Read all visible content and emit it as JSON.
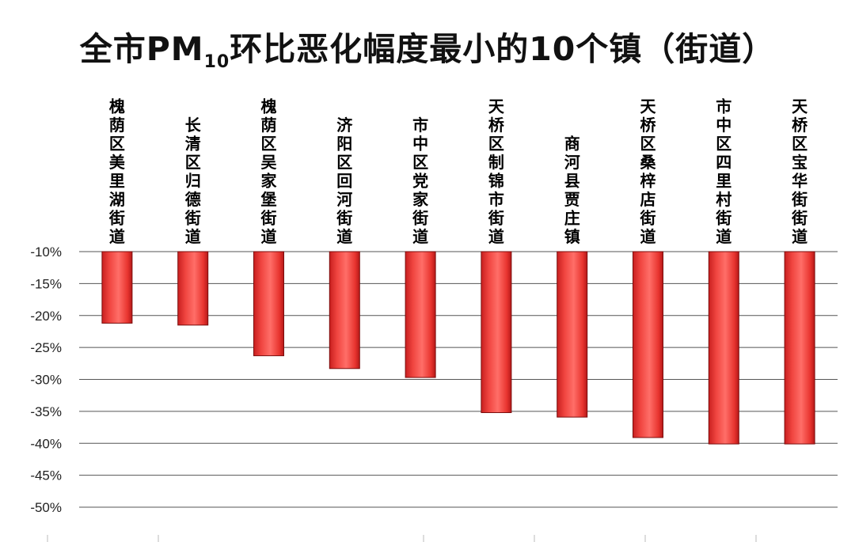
{
  "title": {
    "prefix": "全市PM",
    "subscript": "10",
    "suffix": "环比恶化幅度最小的10个镇（街道）"
  },
  "chart_data": {
    "type": "bar",
    "title": "全市PM10环比恶化幅度最小的10个镇（街道）",
    "xlabel": "",
    "ylabel": "",
    "categories": [
      "槐荫区美里湖街道",
      "长清区归德街道",
      "槐荫区吴家堡街道",
      "济阳区回河街道",
      "市中区党家街道",
      "天桥区制锦市街道",
      "商河县贾庄镇",
      "天桥区桑梓店街道",
      "市中区四里村街道",
      "天桥区宝华街街道"
    ],
    "series": [
      {
        "values": [
          -21.2,
          -21.5,
          -26.3,
          -28.3,
          -29.7,
          -35.2,
          -35.9,
          -39.1,
          -40.1,
          -40.1
        ]
      }
    ],
    "ylim": [
      -50,
      -10
    ],
    "yticks": [
      "-10%",
      "-15%",
      "-20%",
      "-25%",
      "-30%",
      "-35%",
      "-40%",
      "-45%",
      "-50%"
    ],
    "ytick_values": [
      -10,
      -15,
      -20,
      -25,
      -30,
      -35,
      -40,
      -45,
      -50
    ],
    "grid": true,
    "legend": "none",
    "bar_color": "#e8342f"
  }
}
